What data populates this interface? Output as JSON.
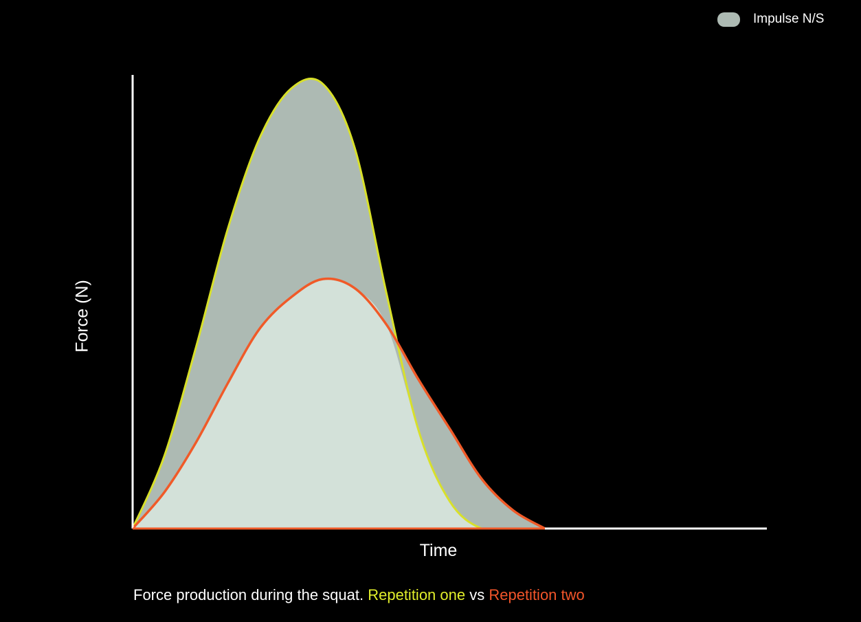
{
  "legend": {
    "label": "Impulse N/S",
    "swatch_color": "#adbab3"
  },
  "caption": {
    "prefix": "Force production during the squat. ",
    "series_one": "Repetition one",
    "separator": " vs ",
    "series_two": "Repetition two"
  },
  "chart_data": {
    "type": "area",
    "xlabel": "Time",
    "ylabel": "Force (N)",
    "xlim": [
      0,
      100
    ],
    "ylim": [
      0,
      100
    ],
    "grid": false,
    "legend_position": "top-right",
    "series": [
      {
        "color": "#d8e02a",
        "fill": "#adbab3",
        "x": [
          0,
          5,
          10,
          15,
          20,
          25,
          30,
          35,
          40,
          45,
          50,
          55,
          60,
          65
        ],
        "y": [
          0,
          16,
          40,
          66,
          86,
          97,
          98,
          84,
          52,
          22,
          6,
          0,
          0,
          0
        ]
      },
      {
        "color": "#f05a28",
        "fill": "#d3e1d9",
        "x": [
          0,
          5,
          10,
          15,
          20,
          25,
          30,
          35,
          40,
          45,
          50,
          55,
          60,
          65
        ],
        "y": [
          0,
          8,
          19,
          32,
          44,
          51,
          55,
          53,
          45,
          33,
          22,
          11,
          4,
          0
        ]
      }
    ]
  }
}
